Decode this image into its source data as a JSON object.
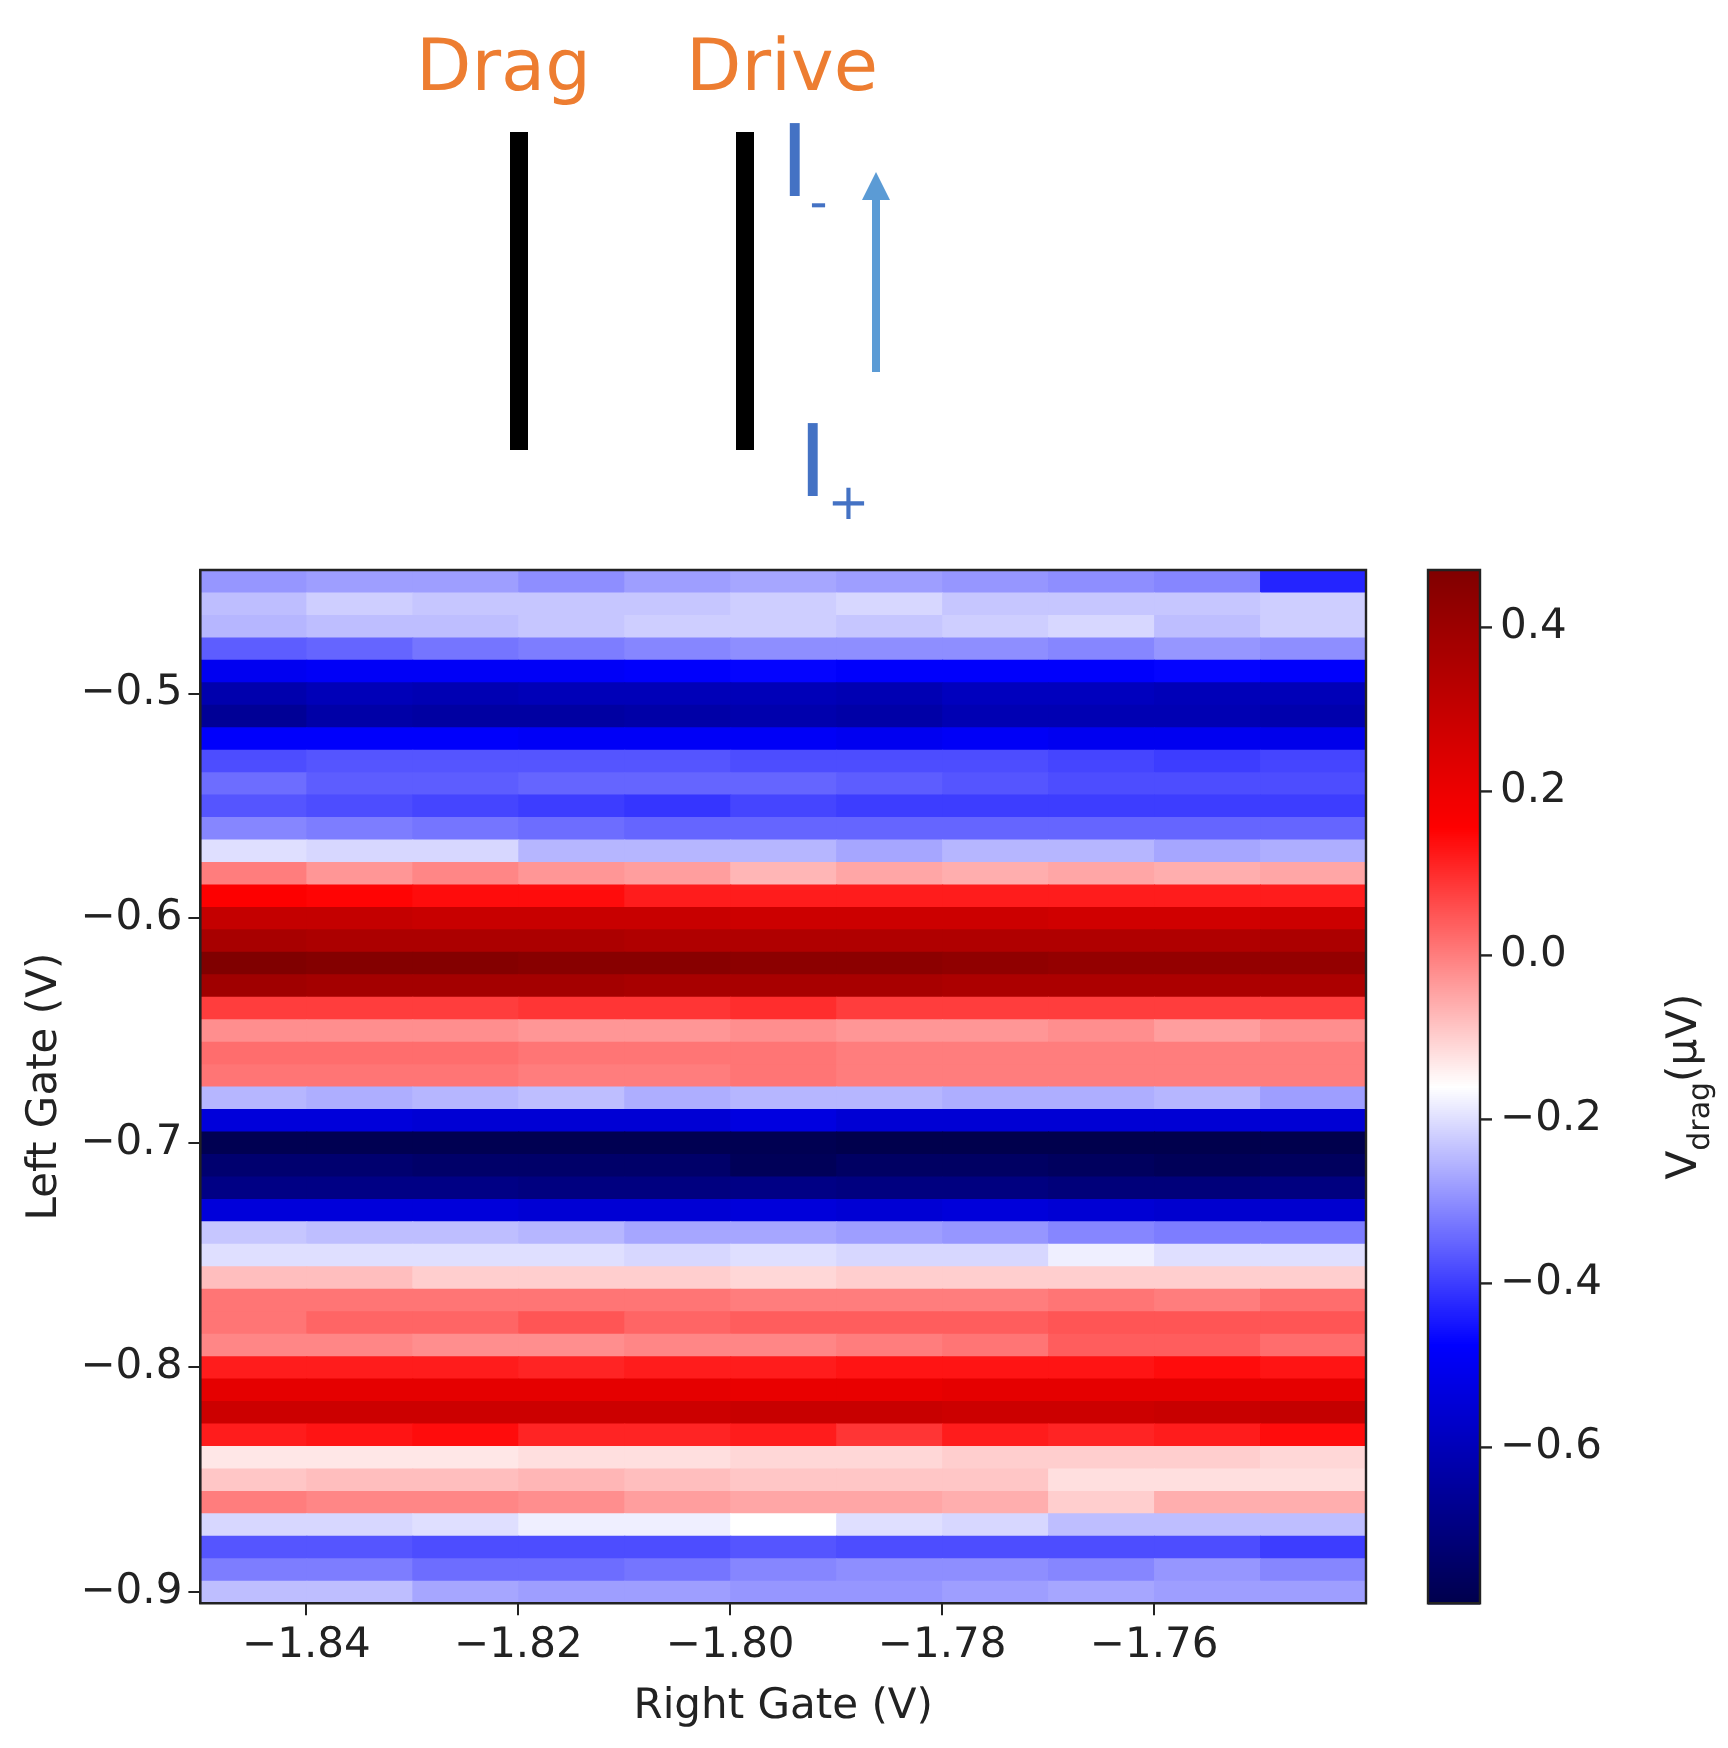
{
  "chart_data": {
    "type": "heatmap",
    "xlabel": "Right Gate (V)",
    "ylabel": "Left Gate (V)",
    "clabel": "V$_{drag}$(μV)",
    "annotations": [
      "Drag",
      "Drive",
      "I$_{-}$",
      "I$_{+}$"
    ],
    "x": [
      -1.845,
      -1.835,
      -1.825,
      -1.815,
      -1.805,
      -1.795,
      -1.785,
      -1.775,
      -1.765,
      -1.755,
      -1.745
    ],
    "y": [
      -0.45,
      -0.46,
      -0.47,
      -0.48,
      -0.49,
      -0.5,
      -0.51,
      -0.52,
      -0.53,
      -0.54,
      -0.55,
      -0.56,
      -0.57,
      -0.58,
      -0.59,
      -0.6,
      -0.61,
      -0.62,
      -0.63,
      -0.64,
      -0.65,
      -0.66,
      -0.67,
      -0.68,
      -0.69,
      -0.7,
      -0.71,
      -0.72,
      -0.73,
      -0.74,
      -0.75,
      -0.76,
      -0.77,
      -0.78,
      -0.79,
      -0.8,
      -0.81,
      -0.82,
      -0.83,
      -0.84,
      -0.85,
      -0.86,
      -0.87,
      -0.88,
      -0.89,
      -0.9
    ],
    "xlim": [
      -1.85,
      -1.74
    ],
    "ylim": [
      -0.905,
      -0.445
    ],
    "xticks": [
      {
        "value": -1.84,
        "label": "−1.84"
      },
      {
        "value": -1.82,
        "label": "−1.82"
      },
      {
        "value": -1.8,
        "label": "−1.80"
      },
      {
        "value": -1.78,
        "label": "−1.78"
      },
      {
        "value": -1.76,
        "label": "−1.76"
      }
    ],
    "yticks": [
      {
        "value": -0.5,
        "label": "−0.5"
      },
      {
        "value": -0.6,
        "label": "−0.6"
      },
      {
        "value": -0.7,
        "label": "−0.7"
      },
      {
        "value": -0.8,
        "label": "−0.8"
      },
      {
        "value": -0.9,
        "label": "−0.9"
      }
    ],
    "clim": [
      -0.79,
      0.47
    ],
    "cticks": [
      {
        "value": -0.6,
        "label": "−0.6"
      },
      {
        "value": -0.4,
        "label": "−0.4"
      },
      {
        "value": -0.2,
        "label": "−0.2"
      },
      {
        "value": 0,
        "label": "0.0"
      },
      0.2,
      0.4
    ],
    "cells": [
      [
        -0.29,
        -0.28,
        -0.28,
        -0.3,
        -0.28,
        -0.27,
        -0.28,
        -0.29,
        -0.3,
        -0.31,
        -0.43
      ],
      [
        -0.24,
        -0.22,
        -0.23,
        -0.23,
        -0.23,
        -0.22,
        -0.21,
        -0.23,
        -0.23,
        -0.23,
        -0.22
      ],
      [
        -0.25,
        -0.24,
        -0.24,
        -0.23,
        -0.22,
        -0.22,
        -0.23,
        -0.22,
        -0.21,
        -0.24,
        -0.22
      ],
      [
        -0.36,
        -0.35,
        -0.33,
        -0.32,
        -0.31,
        -0.3,
        -0.3,
        -0.3,
        -0.31,
        -0.29,
        -0.3
      ],
      [
        -0.5,
        -0.49,
        -0.49,
        -0.49,
        -0.48,
        -0.47,
        -0.48,
        -0.48,
        -0.48,
        -0.47,
        -0.48
      ],
      [
        -0.62,
        -0.6,
        -0.61,
        -0.6,
        -0.6,
        -0.6,
        -0.61,
        -0.59,
        -0.59,
        -0.6,
        -0.6
      ],
      [
        -0.66,
        -0.63,
        -0.64,
        -0.64,
        -0.63,
        -0.62,
        -0.63,
        -0.61,
        -0.61,
        -0.61,
        -0.62
      ],
      [
        -0.48,
        -0.48,
        -0.48,
        -0.49,
        -0.49,
        -0.49,
        -0.5,
        -0.49,
        -0.5,
        -0.5,
        -0.51
      ],
      [
        -0.38,
        -0.37,
        -0.37,
        -0.37,
        -0.37,
        -0.38,
        -0.38,
        -0.38,
        -0.39,
        -0.4,
        -0.39
      ],
      [
        -0.34,
        -0.36,
        -0.36,
        -0.35,
        -0.35,
        -0.35,
        -0.36,
        -0.37,
        -0.38,
        -0.38,
        -0.38
      ],
      [
        -0.37,
        -0.38,
        -0.39,
        -0.4,
        -0.41,
        -0.39,
        -0.4,
        -0.4,
        -0.4,
        -0.4,
        -0.4
      ],
      [
        -0.31,
        -0.32,
        -0.33,
        -0.34,
        -0.35,
        -0.35,
        -0.35,
        -0.35,
        -0.35,
        -0.35,
        -0.35
      ],
      [
        -0.2,
        -0.21,
        -0.21,
        -0.25,
        -0.25,
        -0.25,
        -0.27,
        -0.25,
        -0.25,
        -0.27,
        -0.26
      ],
      [
        0.0,
        -0.03,
        -0.01,
        -0.03,
        -0.04,
        -0.07,
        -0.05,
        -0.06,
        -0.05,
        -0.06,
        -0.05
      ],
      [
        0.16,
        0.15,
        0.14,
        0.14,
        0.12,
        0.12,
        0.12,
        0.12,
        0.12,
        0.12,
        0.12
      ],
      [
        0.3,
        0.3,
        0.29,
        0.29,
        0.29,
        0.28,
        0.28,
        0.28,
        0.27,
        0.27,
        0.28
      ],
      [
        0.37,
        0.36,
        0.36,
        0.36,
        0.35,
        0.35,
        0.35,
        0.35,
        0.35,
        0.35,
        0.36
      ],
      [
        0.47,
        0.46,
        0.46,
        0.45,
        0.45,
        0.44,
        0.44,
        0.43,
        0.42,
        0.42,
        0.42
      ],
      [
        0.39,
        0.38,
        0.38,
        0.38,
        0.37,
        0.37,
        0.37,
        0.36,
        0.36,
        0.36,
        0.36
      ],
      [
        0.08,
        0.08,
        0.08,
        0.09,
        0.09,
        0.1,
        0.08,
        0.08,
        0.08,
        0.08,
        0.08
      ],
      [
        -0.02,
        -0.02,
        -0.02,
        -0.03,
        -0.03,
        -0.02,
        -0.03,
        -0.03,
        -0.02,
        -0.04,
        -0.02
      ],
      [
        0.02,
        0.02,
        0.02,
        0.01,
        0.01,
        0.01,
        0.0,
        0.0,
        0.0,
        0.0,
        0.0
      ],
      [
        0.01,
        0.01,
        0.01,
        0.0,
        0.0,
        0.01,
        0.0,
        0.0,
        0.0,
        0.0,
        0.0
      ],
      [
        -0.25,
        -0.26,
        -0.25,
        -0.24,
        -0.26,
        -0.25,
        -0.25,
        -0.26,
        -0.26,
        -0.25,
        -0.28
      ],
      [
        -0.54,
        -0.54,
        -0.55,
        -0.55,
        -0.55,
        -0.53,
        -0.55,
        -0.55,
        -0.55,
        -0.55,
        -0.55
      ],
      [
        -0.78,
        -0.78,
        -0.78,
        -0.78,
        -0.78,
        -0.78,
        -0.79,
        -0.79,
        -0.79,
        -0.79,
        -0.79
      ],
      [
        -0.73,
        -0.73,
        -0.74,
        -0.74,
        -0.74,
        -0.77,
        -0.75,
        -0.75,
        -0.76,
        -0.77,
        -0.76
      ],
      [
        -0.69,
        -0.69,
        -0.69,
        -0.7,
        -0.7,
        -0.69,
        -0.7,
        -0.7,
        -0.71,
        -0.71,
        -0.7
      ],
      [
        -0.54,
        -0.54,
        -0.54,
        -0.55,
        -0.55,
        -0.54,
        -0.55,
        -0.54,
        -0.55,
        -0.56,
        -0.56
      ],
      [
        -0.23,
        -0.24,
        -0.24,
        -0.25,
        -0.27,
        -0.27,
        -0.28,
        -0.29,
        -0.31,
        -0.32,
        -0.32
      ],
      [
        -0.2,
        -0.2,
        -0.2,
        -0.2,
        -0.21,
        -0.2,
        -0.21,
        -0.21,
        -0.18,
        -0.2,
        -0.2
      ],
      [
        -0.08,
        -0.08,
        -0.1,
        -0.1,
        -0.1,
        -0.11,
        -0.1,
        -0.1,
        -0.1,
        -0.1,
        -0.1
      ],
      [
        0.01,
        0.01,
        0.01,
        0.01,
        0.01,
        0.0,
        0.0,
        0.0,
        0.01,
        0.0,
        0.02
      ],
      [
        0.01,
        0.03,
        0.03,
        0.05,
        0.03,
        0.04,
        0.04,
        0.04,
        0.05,
        0.05,
        0.05
      ],
      [
        -0.01,
        -0.01,
        -0.02,
        -0.02,
        -0.01,
        -0.01,
        0.0,
        0.01,
        0.04,
        0.04,
        0.02
      ],
      [
        0.12,
        0.12,
        0.12,
        0.11,
        0.12,
        0.12,
        0.13,
        0.13,
        0.13,
        0.14,
        0.13
      ],
      [
        0.22,
        0.22,
        0.22,
        0.22,
        0.22,
        0.21,
        0.21,
        0.22,
        0.22,
        0.22,
        0.22
      ],
      [
        0.28,
        0.28,
        0.28,
        0.28,
        0.28,
        0.29,
        0.29,
        0.28,
        0.28,
        0.29,
        0.3
      ],
      [
        0.12,
        0.13,
        0.14,
        0.11,
        0.11,
        0.12,
        0.09,
        0.12,
        0.11,
        0.12,
        0.14
      ],
      [
        -0.13,
        -0.13,
        -0.13,
        -0.12,
        -0.12,
        -0.11,
        -0.11,
        -0.1,
        -0.1,
        -0.1,
        -0.11
      ],
      [
        -0.09,
        -0.08,
        -0.08,
        -0.07,
        -0.08,
        -0.09,
        -0.09,
        -0.09,
        -0.12,
        -0.12,
        -0.12
      ],
      [
        0.0,
        -0.01,
        -0.01,
        -0.02,
        -0.04,
        -0.05,
        -0.05,
        -0.06,
        -0.1,
        -0.06,
        -0.06
      ],
      [
        -0.21,
        -0.21,
        -0.2,
        -0.18,
        -0.18,
        -0.16,
        -0.2,
        -0.21,
        -0.24,
        -0.24,
        -0.24
      ],
      [
        -0.37,
        -0.37,
        -0.38,
        -0.38,
        -0.38,
        -0.37,
        -0.38,
        -0.38,
        -0.38,
        -0.38,
        -0.4
      ],
      [
        -0.32,
        -0.32,
        -0.34,
        -0.34,
        -0.33,
        -0.31,
        -0.3,
        -0.3,
        -0.31,
        -0.29,
        -0.31
      ],
      [
        -0.24,
        -0.24,
        -0.27,
        -0.28,
        -0.28,
        -0.29,
        -0.29,
        -0.28,
        -0.27,
        -0.28,
        -0.28
      ]
    ]
  }
}
